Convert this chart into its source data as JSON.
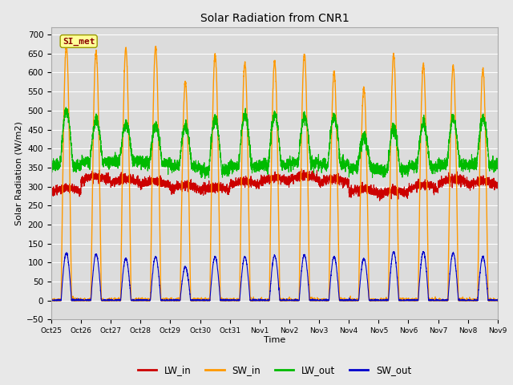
{
  "title": "Solar Radiation from CNR1",
  "xlabel": "Time",
  "ylabel": "Solar Radiation (W/m2)",
  "ylim": [
    -50,
    720
  ],
  "yticks": [
    -50,
    0,
    50,
    100,
    150,
    200,
    250,
    300,
    350,
    400,
    450,
    500,
    550,
    600,
    650,
    700
  ],
  "fig_bg_color": "#e8e8e8",
  "plot_bg_color": "#dcdcdc",
  "colors": {
    "LW_in": "#cc0000",
    "SW_in": "#ff9900",
    "LW_out": "#00bb00",
    "SW_out": "#0000cc"
  },
  "watermark": "SI_met",
  "watermark_color": "#8b0000",
  "watermark_bg": "#ffff99",
  "n_days": 15,
  "grid_color": "#ffffff",
  "tick_labels": [
    "Oct 25",
    "Oct 26",
    "Oct 27",
    "Oct 28",
    "Oct 29",
    "Oct 30",
    "Oct 31",
    "Nov 1",
    "Nov 2",
    "Nov 3",
    "Nov 4",
    "Nov 5",
    "Nov 6",
    "Nov 7",
    "Nov 8",
    "Nov 9"
  ]
}
